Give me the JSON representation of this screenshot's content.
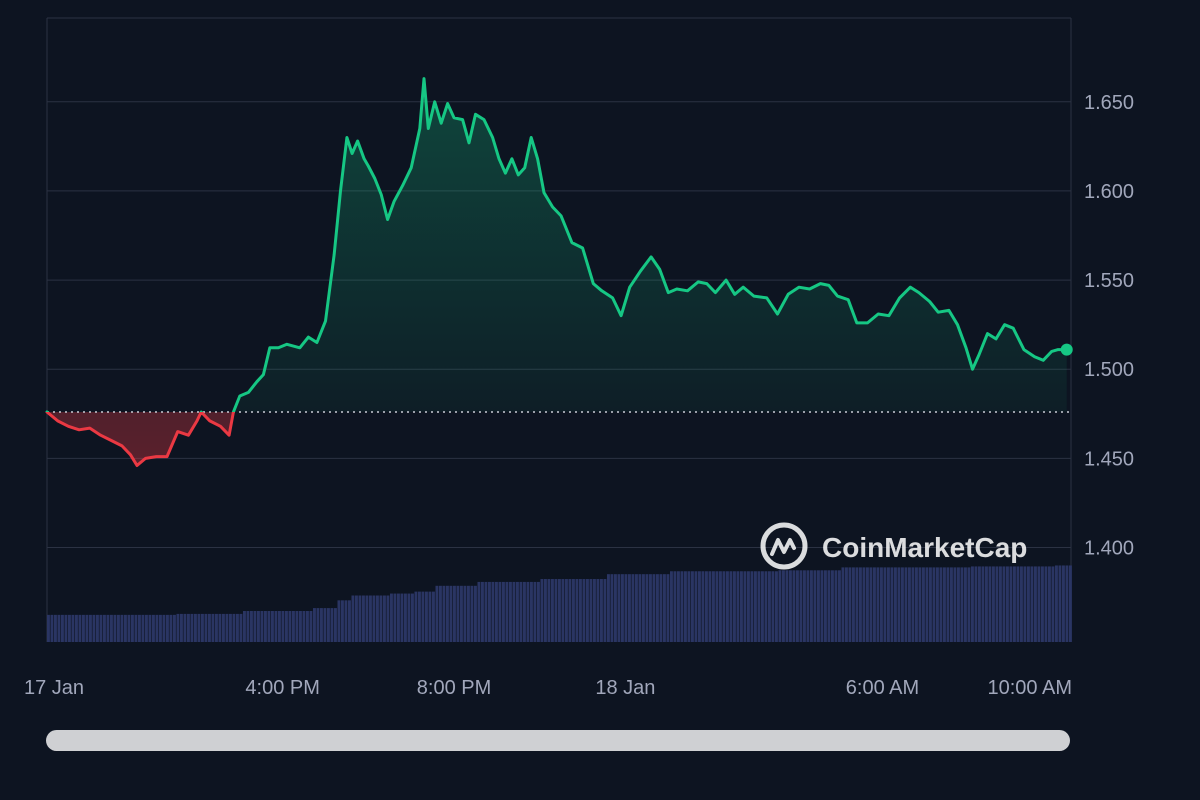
{
  "colors": {
    "background": "#0d1421",
    "grid": "#2b3243",
    "up": "#16c784",
    "down": "#ea3943",
    "volume": "#2a3563",
    "axis_text": "#a1a7bb",
    "baseline": "#c9ccd6",
    "scrollbar": "#cfd0d3"
  },
  "watermark": {
    "text": "CoinMarketCap",
    "icon": "coinmarketcap-logo-icon"
  },
  "chart_data": {
    "type": "area",
    "title": "",
    "xlabel": "",
    "ylabel": "",
    "grid": true,
    "legend": "none",
    "baseline_price": 1.476,
    "ylim": [
      1.347,
      1.697
    ],
    "x_tick_labels": [
      {
        "label": "17 Jan",
        "hour": 10.5
      },
      {
        "label": "4:00 PM",
        "hour": 16
      },
      {
        "label": "8:00 PM",
        "hour": 20
      },
      {
        "label": "18 Jan",
        "hour": 24
      },
      {
        "label": "6:00 AM",
        "hour": 30
      },
      {
        "label": "10:00 AM",
        "hour": 34
      }
    ],
    "y_tick_labels": [
      {
        "label": "1.400",
        "value": 1.4
      },
      {
        "label": "1.450",
        "value": 1.45
      },
      {
        "label": "1.500",
        "value": 1.5
      },
      {
        "label": "1.550",
        "value": 1.55
      },
      {
        "label": "1.600",
        "value": 1.6
      },
      {
        "label": "1.650",
        "value": 1.65
      }
    ],
    "x_range_hours": [
      10.5,
      34.4
    ],
    "series": [
      {
        "values": [
          [
            10.5,
            1.476
          ],
          [
            10.75,
            1.471
          ],
          [
            11.0,
            1.468
          ],
          [
            11.25,
            1.466
          ],
          [
            11.5,
            1.467
          ],
          [
            11.75,
            1.463
          ],
          [
            12.0,
            1.46
          ],
          [
            12.25,
            1.457
          ],
          [
            12.45,
            1.452
          ],
          [
            12.6,
            1.446
          ],
          [
            12.8,
            1.45
          ],
          [
            13.05,
            1.451
          ],
          [
            13.3,
            1.451
          ],
          [
            13.55,
            1.465
          ],
          [
            13.8,
            1.463
          ],
          [
            14.0,
            1.471
          ],
          [
            14.1,
            1.476
          ],
          [
            14.3,
            1.471
          ],
          [
            14.55,
            1.468
          ],
          [
            14.75,
            1.463
          ],
          [
            14.85,
            1.476
          ],
          [
            15.0,
            1.485
          ],
          [
            15.2,
            1.487
          ],
          [
            15.4,
            1.493
          ],
          [
            15.55,
            1.497
          ],
          [
            15.7,
            1.512
          ],
          [
            15.9,
            1.512
          ],
          [
            16.1,
            1.514
          ],
          [
            16.4,
            1.512
          ],
          [
            16.6,
            1.518
          ],
          [
            16.8,
            1.515
          ],
          [
            17.0,
            1.527
          ],
          [
            17.2,
            1.564
          ],
          [
            17.35,
            1.6
          ],
          [
            17.5,
            1.63
          ],
          [
            17.62,
            1.621
          ],
          [
            17.75,
            1.628
          ],
          [
            17.9,
            1.618
          ],
          [
            18.0,
            1.614
          ],
          [
            18.15,
            1.607
          ],
          [
            18.3,
            1.598
          ],
          [
            18.45,
            1.584
          ],
          [
            18.6,
            1.594
          ],
          [
            18.8,
            1.603
          ],
          [
            19.0,
            1.613
          ],
          [
            19.2,
            1.635
          ],
          [
            19.3,
            1.663
          ],
          [
            19.4,
            1.635
          ],
          [
            19.55,
            1.65
          ],
          [
            19.7,
            1.638
          ],
          [
            19.85,
            1.649
          ],
          [
            20.0,
            1.641
          ],
          [
            20.2,
            1.64
          ],
          [
            20.35,
            1.627
          ],
          [
            20.5,
            1.643
          ],
          [
            20.7,
            1.64
          ],
          [
            20.9,
            1.63
          ],
          [
            21.05,
            1.618
          ],
          [
            21.2,
            1.61
          ],
          [
            21.35,
            1.618
          ],
          [
            21.5,
            1.609
          ],
          [
            21.65,
            1.613
          ],
          [
            21.8,
            1.63
          ],
          [
            21.95,
            1.618
          ],
          [
            22.1,
            1.599
          ],
          [
            22.3,
            1.591
          ],
          [
            22.5,
            1.586
          ],
          [
            22.75,
            1.571
          ],
          [
            23.0,
            1.568
          ],
          [
            23.25,
            1.548
          ],
          [
            23.45,
            1.544
          ],
          [
            23.7,
            1.54
          ],
          [
            23.9,
            1.53
          ],
          [
            24.1,
            1.546
          ],
          [
            24.35,
            1.555
          ],
          [
            24.6,
            1.563
          ],
          [
            24.8,
            1.556
          ],
          [
            25.0,
            1.543
          ],
          [
            25.2,
            1.545
          ],
          [
            25.45,
            1.544
          ],
          [
            25.7,
            1.549
          ],
          [
            25.9,
            1.548
          ],
          [
            26.1,
            1.543
          ],
          [
            26.35,
            1.55
          ],
          [
            26.55,
            1.542
          ],
          [
            26.75,
            1.546
          ],
          [
            27.0,
            1.541
          ],
          [
            27.3,
            1.54
          ],
          [
            27.55,
            1.531
          ],
          [
            27.8,
            1.542
          ],
          [
            28.05,
            1.546
          ],
          [
            28.3,
            1.545
          ],
          [
            28.55,
            1.548
          ],
          [
            28.75,
            1.547
          ],
          [
            28.95,
            1.541
          ],
          [
            29.2,
            1.539
          ],
          [
            29.4,
            1.526
          ],
          [
            29.65,
            1.526
          ],
          [
            29.9,
            1.531
          ],
          [
            30.15,
            1.53
          ],
          [
            30.4,
            1.54
          ],
          [
            30.65,
            1.546
          ],
          [
            30.85,
            1.543
          ],
          [
            31.1,
            1.538
          ],
          [
            31.3,
            1.532
          ],
          [
            31.55,
            1.533
          ],
          [
            31.75,
            1.525
          ],
          [
            31.95,
            1.512
          ],
          [
            32.1,
            1.5
          ],
          [
            32.25,
            1.508
          ],
          [
            32.45,
            1.52
          ],
          [
            32.65,
            1.517
          ],
          [
            32.85,
            1.525
          ],
          [
            33.05,
            1.523
          ],
          [
            33.3,
            1.511
          ],
          [
            33.55,
            1.507
          ],
          [
            33.75,
            1.505
          ],
          [
            33.95,
            1.51
          ],
          [
            34.1,
            1.511
          ],
          [
            34.3,
            1.511
          ]
        ]
      }
    ],
    "volume": [
      [
        10.5,
        0.28
      ],
      [
        13.5,
        0.29
      ],
      [
        15.0,
        0.32
      ],
      [
        16.7,
        0.35
      ],
      [
        17.2,
        0.43
      ],
      [
        17.6,
        0.48
      ],
      [
        18.5,
        0.5
      ],
      [
        19.0,
        0.52
      ],
      [
        19.5,
        0.58
      ],
      [
        20.5,
        0.62
      ],
      [
        22.0,
        0.65
      ],
      [
        23.5,
        0.7
      ],
      [
        25.0,
        0.73
      ],
      [
        27.5,
        0.74
      ],
      [
        29.0,
        0.77
      ],
      [
        32.0,
        0.78
      ],
      [
        34.0,
        0.79
      ]
    ],
    "current_point": [
      34.3,
      1.511
    ]
  }
}
